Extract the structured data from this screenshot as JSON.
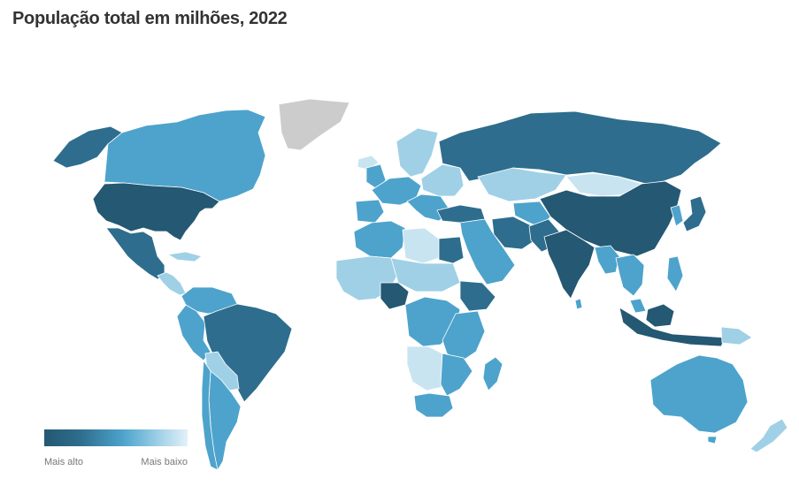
{
  "title": "População total em milhões, 2022",
  "legend": {
    "high_label": "Mais alto",
    "low_label": "Mais baixo"
  },
  "colors": {
    "highest": "#245873",
    "high": "#2e6d8d",
    "medium": "#4da3cc",
    "low": "#9fd0e6",
    "lowest": "#c9e4f1",
    "no_data": "#cccccc",
    "border": "#ffffff",
    "title": "#333333",
    "legend_text": "#777777"
  }
}
